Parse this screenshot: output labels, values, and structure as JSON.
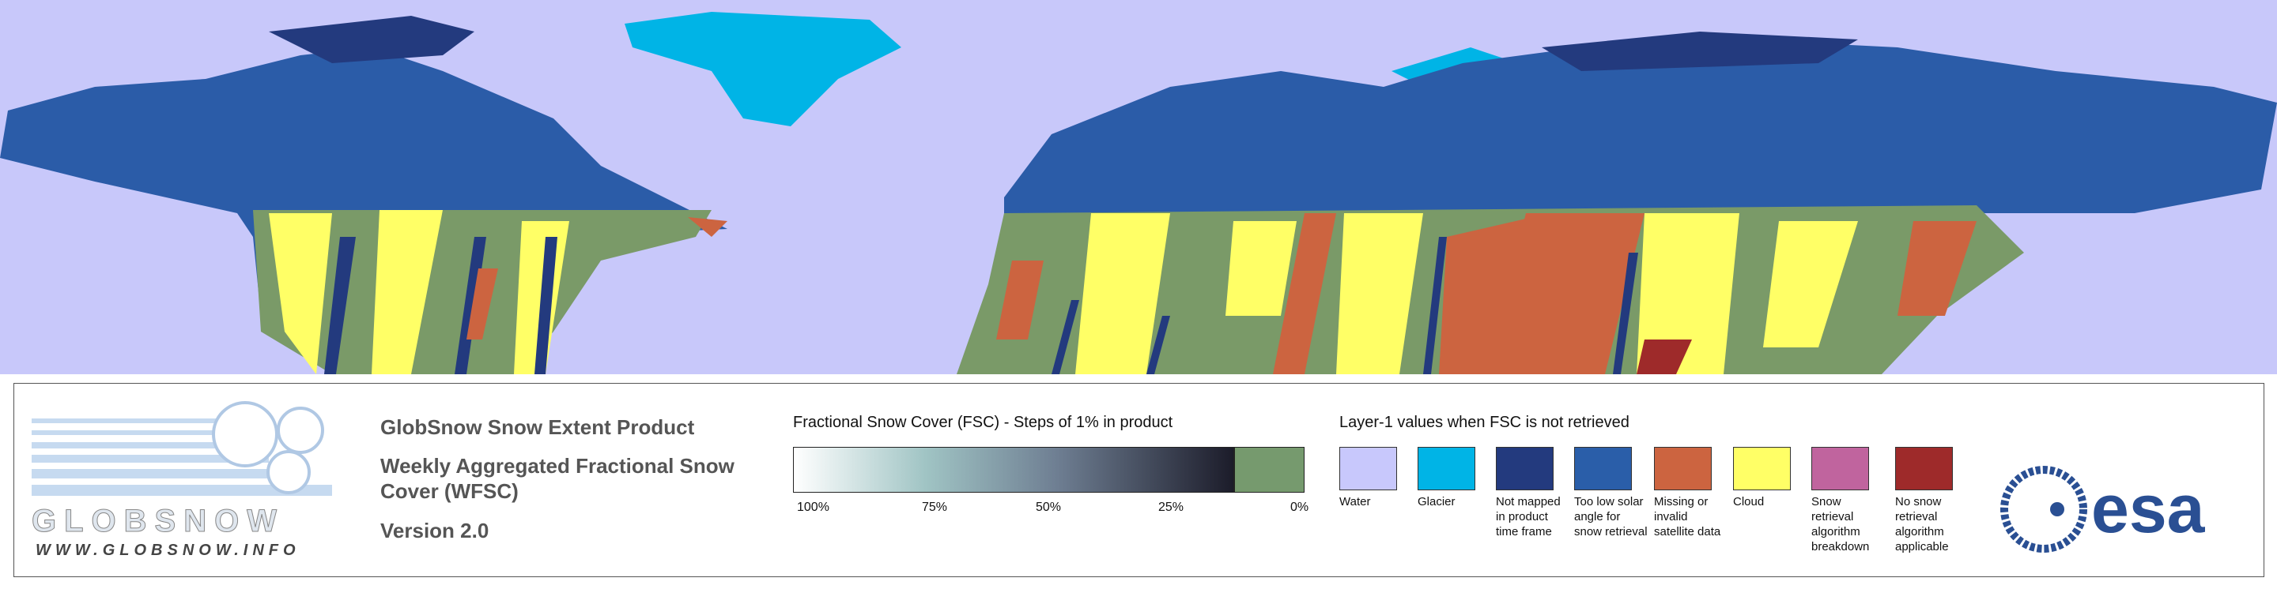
{
  "logo": {
    "wordmark": "GLOBSNOW",
    "url": "WWW.GLOBSNOW.INFO"
  },
  "product": {
    "title": "GlobSnow Snow Extent Product",
    "subtitle": "Weekly Aggregated Fractional Snow Cover (WFSC)",
    "version": "Version 2.0"
  },
  "fsc_scale": {
    "title": "Fractional Snow Cover (FSC) - Steps of 1% in product",
    "labels": [
      "100%",
      "75%",
      "50%",
      "25%",
      "0%"
    ]
  },
  "layer1": {
    "title": "Layer-1 values when FSC is not retrieved",
    "classes": [
      {
        "label": "Water",
        "color": "#c8c8fc"
      },
      {
        "label": "Glacier",
        "color": "#00b4e6"
      },
      {
        "label": "Not mapped in product time frame",
        "color": "#233a7e"
      },
      {
        "label": "Too low solar angle for snow retrieval",
        "color": "#2a5ea9"
      },
      {
        "label": "Missing or invalid satellite data",
        "color": "#cc6440"
      },
      {
        "label": "Cloud",
        "color": "#ffff66"
      },
      {
        "label": "Snow retrieval algorithm breakdown",
        "color": "#c0649e"
      },
      {
        "label": "No snow retrieval algorithm applicable",
        "color": "#9e2a2a"
      }
    ]
  },
  "esa_logo": "esa"
}
